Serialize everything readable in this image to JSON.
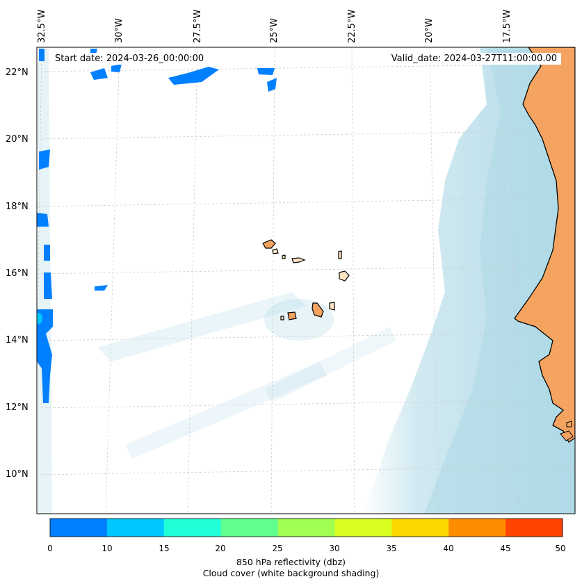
{
  "title": {
    "start_date": "Start date: 2024-03-26_00:00:00",
    "valid_date": "Valid_date: 2024-03-27T11:00:00.00"
  },
  "map": {
    "lon_labels": [
      "32.5°W",
      "30°W",
      "27.5°W",
      "25°W",
      "22.5°W",
      "20°W",
      "17.5°W"
    ],
    "lat_labels": [
      "22°N",
      "20°N",
      "18°N",
      "16°N",
      "14°N",
      "12°N",
      "10°N"
    ],
    "colors": {
      "land": "#f4a460",
      "cloud": "#add8e6",
      "ocean": "#ffffff",
      "coastline": "#000000",
      "grid": "#c8c8c8"
    }
  },
  "colorbar": {
    "ticks": [
      "0",
      "10",
      "15",
      "20",
      "25",
      "30",
      "35",
      "40",
      "45",
      "50"
    ],
    "colors": [
      "#0080ff",
      "#00c8ff",
      "#20ffd8",
      "#60ff90",
      "#a0ff50",
      "#d8ff20",
      "#ffd700",
      "#ff8c00",
      "#ff4500"
    ],
    "label_line1": "850 hPa reflectivity (dbz)",
    "label_line2": "Cloud cover (white background shading)"
  }
}
